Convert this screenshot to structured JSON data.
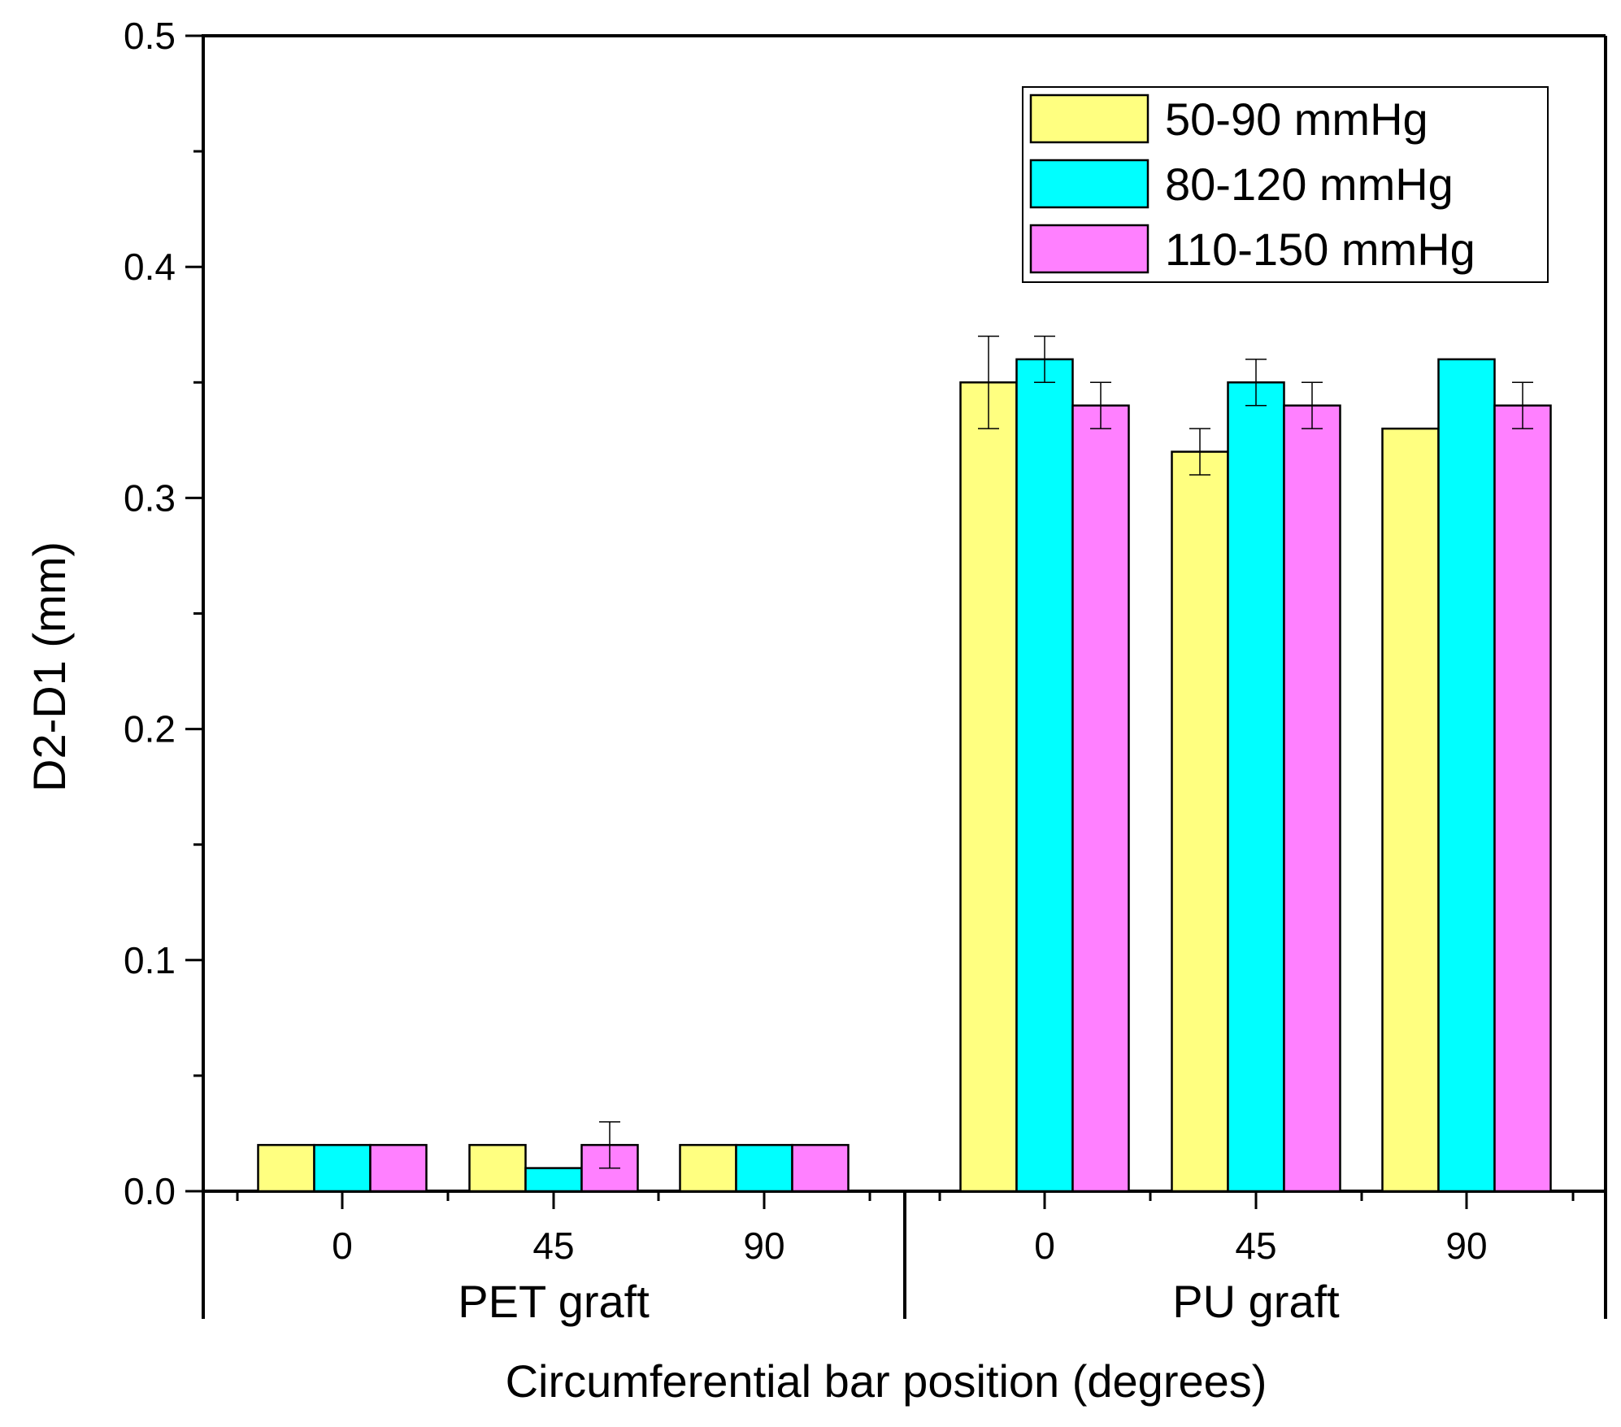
{
  "chart_data": {
    "type": "bar",
    "title": "",
    "xlabel": "Circumferential bar position (degrees)",
    "ylabel": "D2-D1 (mm)",
    "ylim": [
      0,
      0.5
    ],
    "yticks": [
      "0.0",
      "0.1",
      "0.2",
      "0.3",
      "0.4",
      "0.5"
    ],
    "groups": [
      {
        "name": "PET graft",
        "categories": [
          "0",
          "45",
          "90"
        ]
      },
      {
        "name": "PU graft",
        "categories": [
          "0",
          "45",
          "90"
        ]
      }
    ],
    "series": [
      {
        "name": "50-90 mmHg",
        "color": "#FFFF80",
        "values": [
          0.02,
          0.02,
          0.02,
          0.35,
          0.32,
          0.33
        ],
        "errors": [
          null,
          null,
          null,
          0.02,
          0.01,
          null
        ]
      },
      {
        "name": "80-120 mmHg",
        "color": "#00FFFF",
        "values": [
          0.02,
          0.01,
          0.02,
          0.36,
          0.35,
          0.36
        ],
        "errors": [
          null,
          null,
          null,
          0.01,
          0.01,
          null
        ]
      },
      {
        "name": "110-150 mmHg",
        "color": "#FF80FF",
        "values": [
          0.02,
          0.02,
          0.02,
          0.34,
          0.34,
          0.34
        ],
        "errors": [
          null,
          0.01,
          null,
          0.01,
          0.01,
          0.01
        ]
      }
    ],
    "legend_position": "top-right",
    "grid": false
  }
}
